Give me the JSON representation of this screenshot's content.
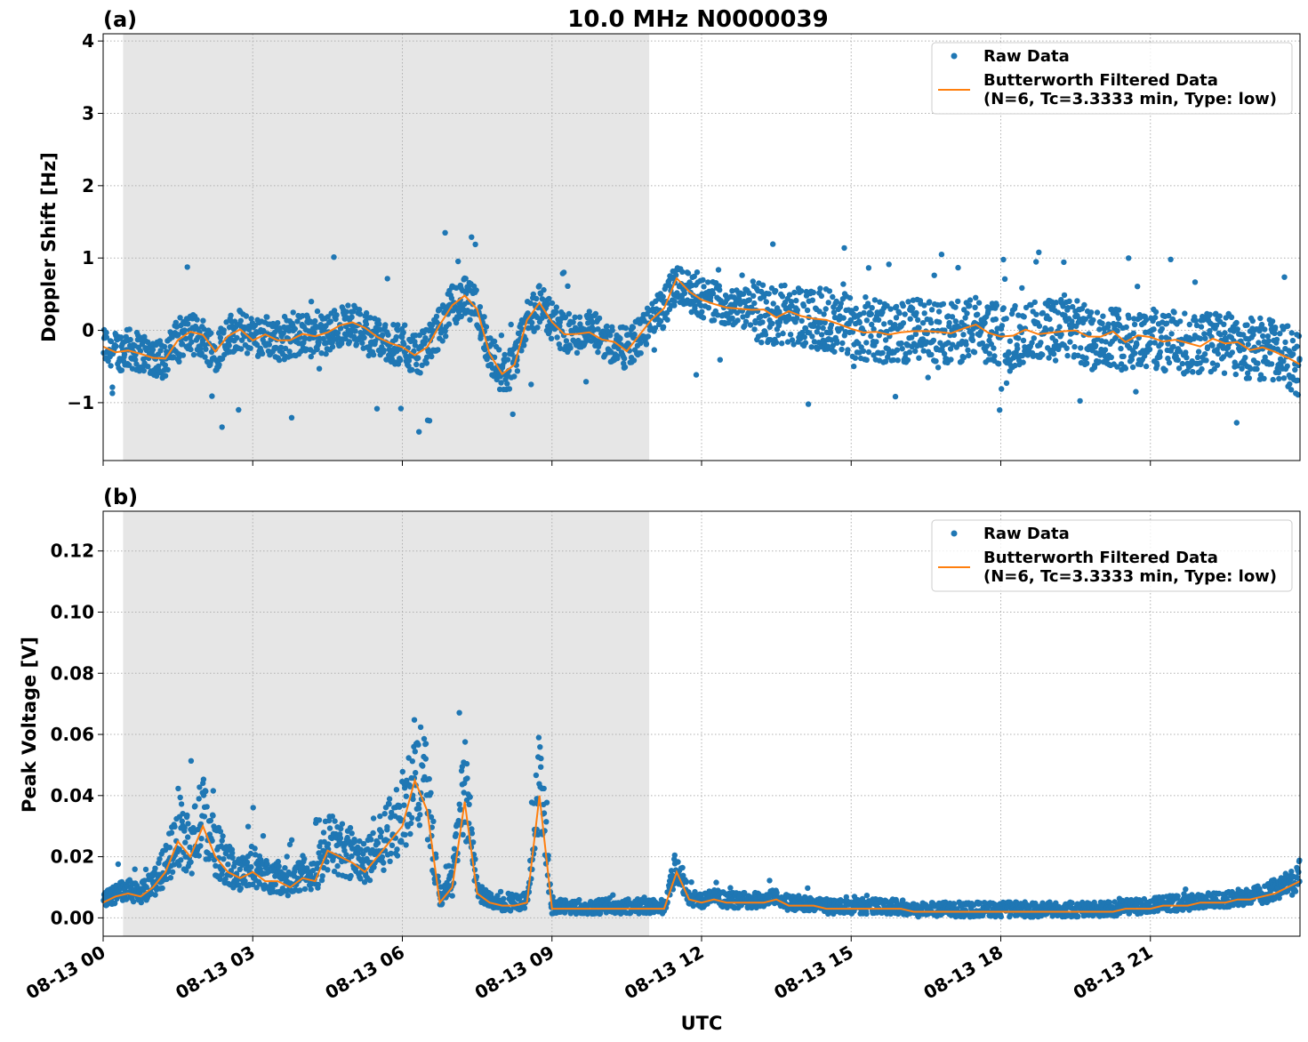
{
  "chart_data": [
    {
      "type": "scatter",
      "panel_label": "(a)",
      "title": "10.0 MHz N0000039",
      "xlabel": "",
      "ylabel": "Doppler Shift [Hz]",
      "xlim": [
        0,
        24
      ],
      "ylim": [
        -1.8,
        4.1
      ],
      "y_ticks": [
        4,
        3,
        2,
        1,
        0,
        -1
      ],
      "y_tick_labels": [
        "4",
        "3",
        "2",
        "1",
        "0",
        "−1"
      ],
      "grid": true,
      "legend_position": "top-right",
      "shaded_region": [
        0.4,
        10.95
      ],
      "series": [
        {
          "name": "Raw Data",
          "kind": "points",
          "color": "#1f77b4",
          "x": [
            0.0,
            0.25,
            0.5,
            0.75,
            1.0,
            1.25,
            1.5,
            1.75,
            2.0,
            2.25,
            2.5,
            2.75,
            3.0,
            3.25,
            3.5,
            3.75,
            4.0,
            4.25,
            4.5,
            4.75,
            5.0,
            5.25,
            5.5,
            5.75,
            6.0,
            6.25,
            6.5,
            6.75,
            7.0,
            7.25,
            7.5,
            7.75,
            8.0,
            8.25,
            8.5,
            8.75,
            9.0,
            9.25,
            9.5,
            9.75,
            10.0,
            10.25,
            10.5,
            10.75,
            11.0,
            11.25,
            11.5,
            11.75,
            12.0,
            12.25,
            12.5,
            12.75,
            13.0,
            13.25,
            13.5,
            13.75,
            14.0,
            14.25,
            14.5,
            14.75,
            15.0,
            15.25,
            15.5,
            15.75,
            16.0,
            16.25,
            16.5,
            16.75,
            17.0,
            17.25,
            17.5,
            17.75,
            18.0,
            18.25,
            18.5,
            18.75,
            19.0,
            19.25,
            19.5,
            19.75,
            20.0,
            20.25,
            20.5,
            20.75,
            21.0,
            21.25,
            21.5,
            21.75,
            22.0,
            22.25,
            22.5,
            22.75,
            23.0,
            23.25,
            23.5,
            23.75,
            24.0
          ],
          "y": [
            -0.2,
            -0.3,
            -0.25,
            -0.3,
            -0.35,
            -0.4,
            -0.1,
            -0.05,
            -0.1,
            -0.3,
            -0.05,
            0.0,
            -0.1,
            -0.05,
            -0.15,
            -0.1,
            -0.05,
            -0.1,
            -0.05,
            0.05,
            0.1,
            0.0,
            -0.1,
            -0.2,
            -0.2,
            -0.35,
            -0.25,
            0.05,
            0.35,
            0.45,
            0.3,
            -0.3,
            -0.6,
            -0.5,
            0.15,
            0.35,
            0.15,
            -0.05,
            -0.05,
            0.0,
            -0.1,
            -0.2,
            -0.25,
            -0.1,
            0.15,
            0.3,
            0.7,
            0.55,
            0.45,
            0.4,
            0.35,
            0.3,
            0.3,
            0.25,
            0.2,
            0.25,
            0.2,
            0.15,
            0.15,
            0.1,
            0.05,
            0.0,
            0.0,
            -0.05,
            -0.05,
            0.0,
            0.0,
            -0.05,
            -0.05,
            0.0,
            0.05,
            -0.05,
            -0.05,
            -0.1,
            0.0,
            -0.05,
            0.0,
            0.0,
            0.0,
            -0.1,
            -0.1,
            -0.05,
            -0.15,
            -0.1,
            -0.1,
            -0.15,
            -0.15,
            -0.2,
            -0.2,
            -0.15,
            -0.2,
            -0.2,
            -0.25,
            -0.25,
            -0.3,
            -0.35,
            -0.5
          ]
        },
        {
          "name": "Butterworth Filtered Data\n(N=6, Tc=3.3333 min, Type: low)",
          "kind": "line",
          "color": "#ff7f0e",
          "x": [
            0.0,
            0.25,
            0.5,
            0.75,
            1.0,
            1.25,
            1.5,
            1.75,
            2.0,
            2.25,
            2.5,
            2.75,
            3.0,
            3.25,
            3.5,
            3.75,
            4.0,
            4.25,
            4.5,
            4.75,
            5.0,
            5.25,
            5.5,
            5.75,
            6.0,
            6.25,
            6.5,
            6.75,
            7.0,
            7.25,
            7.5,
            7.75,
            8.0,
            8.25,
            8.5,
            8.75,
            9.0,
            9.25,
            9.5,
            9.75,
            10.0,
            10.25,
            10.5,
            10.75,
            11.0,
            11.25,
            11.5,
            11.75,
            12.0,
            12.25,
            12.5,
            12.75,
            13.0,
            13.25,
            13.5,
            13.75,
            14.0,
            14.25,
            14.5,
            14.75,
            15.0,
            15.25,
            15.5,
            15.75,
            16.0,
            16.25,
            16.5,
            16.75,
            17.0,
            17.25,
            17.5,
            17.75,
            18.0,
            18.25,
            18.5,
            18.75,
            19.0,
            19.25,
            19.5,
            19.75,
            20.0,
            20.25,
            20.5,
            20.75,
            21.0,
            21.25,
            21.5,
            21.75,
            22.0,
            22.25,
            22.5,
            22.75,
            23.0,
            23.25,
            23.5,
            23.75,
            24.0
          ],
          "y": [
            -0.2,
            -0.3,
            -0.25,
            -0.3,
            -0.35,
            -0.4,
            -0.1,
            -0.05,
            -0.1,
            -0.3,
            -0.05,
            0.0,
            -0.1,
            -0.05,
            -0.15,
            -0.1,
            -0.05,
            -0.1,
            -0.05,
            0.05,
            0.1,
            0.0,
            -0.1,
            -0.2,
            -0.2,
            -0.35,
            -0.25,
            0.05,
            0.35,
            0.45,
            0.3,
            -0.3,
            -0.6,
            -0.5,
            0.15,
            0.35,
            0.15,
            -0.05,
            -0.05,
            0.0,
            -0.1,
            -0.2,
            -0.25,
            -0.1,
            0.15,
            0.3,
            0.7,
            0.55,
            0.45,
            0.4,
            0.35,
            0.3,
            0.3,
            0.25,
            0.2,
            0.25,
            0.2,
            0.15,
            0.15,
            0.1,
            0.05,
            0.0,
            0.0,
            -0.05,
            -0.05,
            0.0,
            0.0,
            -0.05,
            -0.05,
            0.0,
            0.05,
            -0.05,
            -0.05,
            -0.1,
            0.0,
            -0.05,
            0.0,
            0.0,
            0.0,
            -0.1,
            -0.1,
            -0.05,
            -0.15,
            -0.1,
            -0.1,
            -0.15,
            -0.15,
            -0.2,
            -0.2,
            -0.15,
            -0.2,
            -0.2,
            -0.25,
            -0.25,
            -0.3,
            -0.35,
            -0.5
          ]
        }
      ]
    },
    {
      "type": "scatter",
      "panel_label": "(b)",
      "title": "",
      "xlabel": "UTC",
      "ylabel": "Peak Voltage [V]",
      "xlim": [
        0,
        24
      ],
      "ylim": [
        -0.006,
        0.133
      ],
      "y_ticks": [
        0.12,
        0.1,
        0.08,
        0.06,
        0.04,
        0.02,
        0.0
      ],
      "y_tick_labels": [
        "0.12",
        "0.10",
        "0.08",
        "0.06",
        "0.04",
        "0.02",
        "0.00"
      ],
      "x_ticks": [
        0,
        3,
        6,
        9,
        12,
        15,
        18,
        21
      ],
      "x_tick_labels": [
        "08-13 00",
        "08-13 03",
        "08-13 06",
        "08-13 09",
        "08-13 12",
        "08-13 15",
        "08-13 18",
        "08-13 21"
      ],
      "grid": true,
      "legend_position": "top-right",
      "shaded_region": [
        0.4,
        10.95
      ],
      "series": [
        {
          "name": "Raw Data",
          "kind": "points",
          "color": "#1f77b4",
          "x": [
            0.0,
            0.25,
            0.5,
            0.75,
            1.0,
            1.25,
            1.5,
            1.75,
            2.0,
            2.25,
            2.5,
            2.75,
            3.0,
            3.25,
            3.5,
            3.75,
            4.0,
            4.25,
            4.5,
            4.75,
            5.0,
            5.25,
            5.5,
            5.75,
            6.0,
            6.25,
            6.5,
            6.75,
            7.0,
            7.25,
            7.5,
            7.75,
            8.0,
            8.25,
            8.5,
            8.75,
            9.0,
            9.25,
            9.5,
            9.75,
            10.0,
            10.25,
            10.5,
            10.75,
            11.0,
            11.25,
            11.5,
            11.75,
            12.0,
            12.25,
            12.5,
            12.75,
            13.0,
            13.25,
            13.5,
            13.75,
            14.0,
            14.25,
            14.5,
            14.75,
            15.0,
            15.25,
            15.5,
            15.75,
            16.0,
            16.25,
            16.5,
            16.75,
            17.0,
            17.25,
            17.5,
            17.75,
            18.0,
            18.25,
            18.5,
            18.75,
            19.0,
            19.25,
            19.5,
            19.75,
            20.0,
            20.25,
            20.5,
            20.75,
            21.0,
            21.25,
            21.5,
            21.75,
            22.0,
            22.25,
            22.5,
            22.75,
            23.0,
            23.25,
            23.5,
            23.75,
            24.0
          ],
          "y": [
            0.005,
            0.007,
            0.008,
            0.007,
            0.01,
            0.015,
            0.025,
            0.02,
            0.03,
            0.02,
            0.015,
            0.013,
            0.015,
            0.012,
            0.012,
            0.01,
            0.013,
            0.012,
            0.022,
            0.02,
            0.018,
            0.015,
            0.02,
            0.025,
            0.03,
            0.045,
            0.035,
            0.005,
            0.01,
            0.038,
            0.008,
            0.005,
            0.004,
            0.004,
            0.005,
            0.04,
            0.003,
            0.003,
            0.003,
            0.003,
            0.003,
            0.003,
            0.003,
            0.003,
            0.003,
            0.003,
            0.015,
            0.006,
            0.005,
            0.006,
            0.005,
            0.005,
            0.005,
            0.005,
            0.006,
            0.004,
            0.004,
            0.004,
            0.003,
            0.003,
            0.003,
            0.003,
            0.003,
            0.003,
            0.003,
            0.002,
            0.002,
            0.002,
            0.002,
            0.002,
            0.002,
            0.002,
            0.002,
            0.002,
            0.002,
            0.002,
            0.002,
            0.002,
            0.002,
            0.002,
            0.002,
            0.002,
            0.003,
            0.003,
            0.003,
            0.004,
            0.004,
            0.004,
            0.005,
            0.005,
            0.005,
            0.006,
            0.006,
            0.007,
            0.008,
            0.01,
            0.012
          ]
        },
        {
          "name": "Butterworth Filtered Data\n(N=6, Tc=3.3333 min, Type: low)",
          "kind": "line",
          "color": "#ff7f0e",
          "x": [
            0.0,
            0.25,
            0.5,
            0.75,
            1.0,
            1.25,
            1.5,
            1.75,
            2.0,
            2.25,
            2.5,
            2.75,
            3.0,
            3.25,
            3.5,
            3.75,
            4.0,
            4.25,
            4.5,
            4.75,
            5.0,
            5.25,
            5.5,
            5.75,
            6.0,
            6.25,
            6.5,
            6.75,
            7.0,
            7.25,
            7.5,
            7.75,
            8.0,
            8.25,
            8.5,
            8.75,
            9.0,
            9.25,
            9.5,
            9.75,
            10.0,
            10.25,
            10.5,
            10.75,
            11.0,
            11.25,
            11.5,
            11.75,
            12.0,
            12.25,
            12.5,
            12.75,
            13.0,
            13.25,
            13.5,
            13.75,
            14.0,
            14.25,
            14.5,
            14.75,
            15.0,
            15.25,
            15.5,
            15.75,
            16.0,
            16.25,
            16.5,
            16.75,
            17.0,
            17.25,
            17.5,
            17.75,
            18.0,
            18.25,
            18.5,
            18.75,
            19.0,
            19.25,
            19.5,
            19.75,
            20.0,
            20.25,
            20.5,
            20.75,
            21.0,
            21.25,
            21.5,
            21.75,
            22.0,
            22.25,
            22.5,
            22.75,
            23.0,
            23.25,
            23.5,
            23.75,
            24.0
          ],
          "y": [
            0.005,
            0.007,
            0.008,
            0.007,
            0.01,
            0.015,
            0.025,
            0.02,
            0.03,
            0.02,
            0.015,
            0.013,
            0.015,
            0.012,
            0.012,
            0.01,
            0.013,
            0.012,
            0.022,
            0.02,
            0.018,
            0.015,
            0.02,
            0.025,
            0.03,
            0.045,
            0.035,
            0.005,
            0.01,
            0.038,
            0.008,
            0.005,
            0.004,
            0.004,
            0.005,
            0.04,
            0.003,
            0.003,
            0.003,
            0.003,
            0.003,
            0.003,
            0.003,
            0.003,
            0.003,
            0.003,
            0.015,
            0.006,
            0.005,
            0.006,
            0.005,
            0.005,
            0.005,
            0.005,
            0.006,
            0.004,
            0.004,
            0.004,
            0.003,
            0.003,
            0.003,
            0.003,
            0.003,
            0.003,
            0.003,
            0.002,
            0.002,
            0.002,
            0.002,
            0.002,
            0.002,
            0.002,
            0.002,
            0.002,
            0.002,
            0.002,
            0.002,
            0.002,
            0.002,
            0.002,
            0.002,
            0.002,
            0.003,
            0.003,
            0.003,
            0.004,
            0.004,
            0.004,
            0.005,
            0.005,
            0.005,
            0.006,
            0.006,
            0.007,
            0.008,
            0.01,
            0.012
          ]
        }
      ]
    }
  ]
}
